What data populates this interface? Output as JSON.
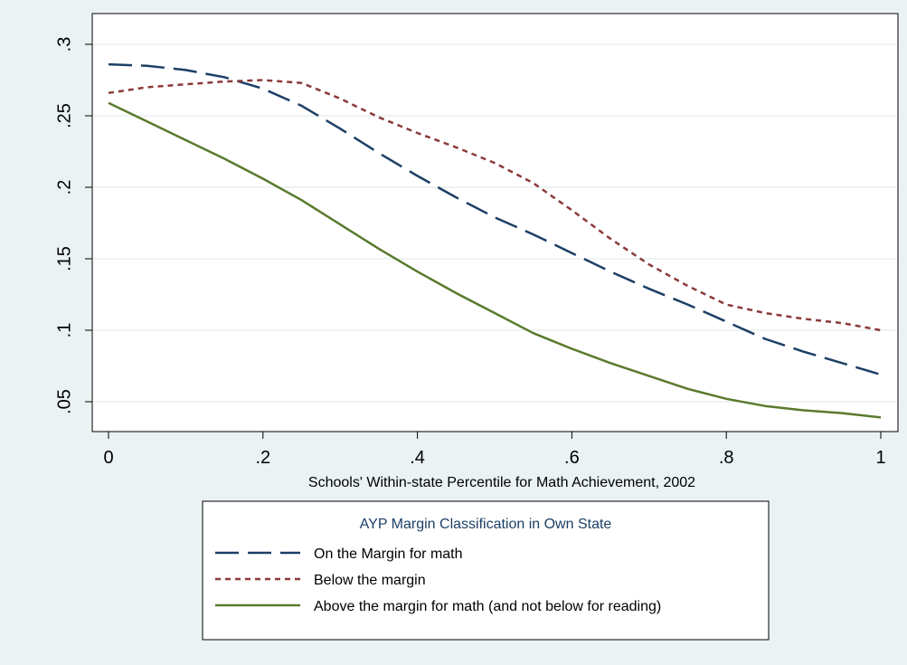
{
  "chart_data": {
    "type": "line",
    "xlabel": "Schools' Within-state Percentile for Math Achievement, 2002",
    "ylabel": "",
    "xlim": [
      0,
      1
    ],
    "ylim": [
      0.038,
      0.31
    ],
    "x_ticks": [
      0,
      0.2,
      0.4,
      0.6,
      0.8,
      1
    ],
    "x_tick_labels": [
      "0",
      ".2",
      ".4",
      ".6",
      ".8",
      "1"
    ],
    "y_ticks": [
      0.05,
      0.1,
      0.15,
      0.2,
      0.25,
      0.3
    ],
    "y_tick_labels": [
      ".05",
      ".1",
      ".15",
      ".2",
      ".25",
      ".3"
    ],
    "grid": "horizontal",
    "legend": {
      "title": "AYP Margin Classification in Own State",
      "placement": "bottom"
    },
    "x": [
      0,
      0.05,
      0.1,
      0.15,
      0.2,
      0.25,
      0.3,
      0.35,
      0.4,
      0.45,
      0.5,
      0.55,
      0.6,
      0.65,
      0.7,
      0.75,
      0.8,
      0.85,
      0.9,
      0.95,
      1.0
    ],
    "series": [
      {
        "name": "On the Margin for math",
        "color": "#1c3f66",
        "style": "long-dash",
        "values": [
          0.286,
          0.285,
          0.282,
          0.277,
          0.269,
          0.257,
          0.241,
          0.224,
          0.208,
          0.193,
          0.179,
          0.167,
          0.154,
          0.141,
          0.129,
          0.118,
          0.106,
          0.094,
          0.085,
          0.077,
          0.069
        ]
      },
      {
        "name": "Below the margin",
        "color": "#8b3a3a",
        "style": "short-dash",
        "values": [
          0.266,
          0.27,
          0.272,
          0.274,
          0.275,
          0.273,
          0.262,
          0.249,
          0.238,
          0.228,
          0.217,
          0.203,
          0.184,
          0.164,
          0.146,
          0.131,
          0.118,
          0.112,
          0.108,
          0.105,
          0.1
        ]
      },
      {
        "name": "Above the margin for math (and not below for reading)",
        "color": "#5a7a2e",
        "style": "solid",
        "values": [
          0.259,
          0.246,
          0.233,
          0.22,
          0.206,
          0.191,
          0.174,
          0.157,
          0.141,
          0.126,
          0.112,
          0.098,
          0.087,
          0.077,
          0.068,
          0.059,
          0.052,
          0.047,
          0.044,
          0.042,
          0.039
        ]
      }
    ]
  }
}
